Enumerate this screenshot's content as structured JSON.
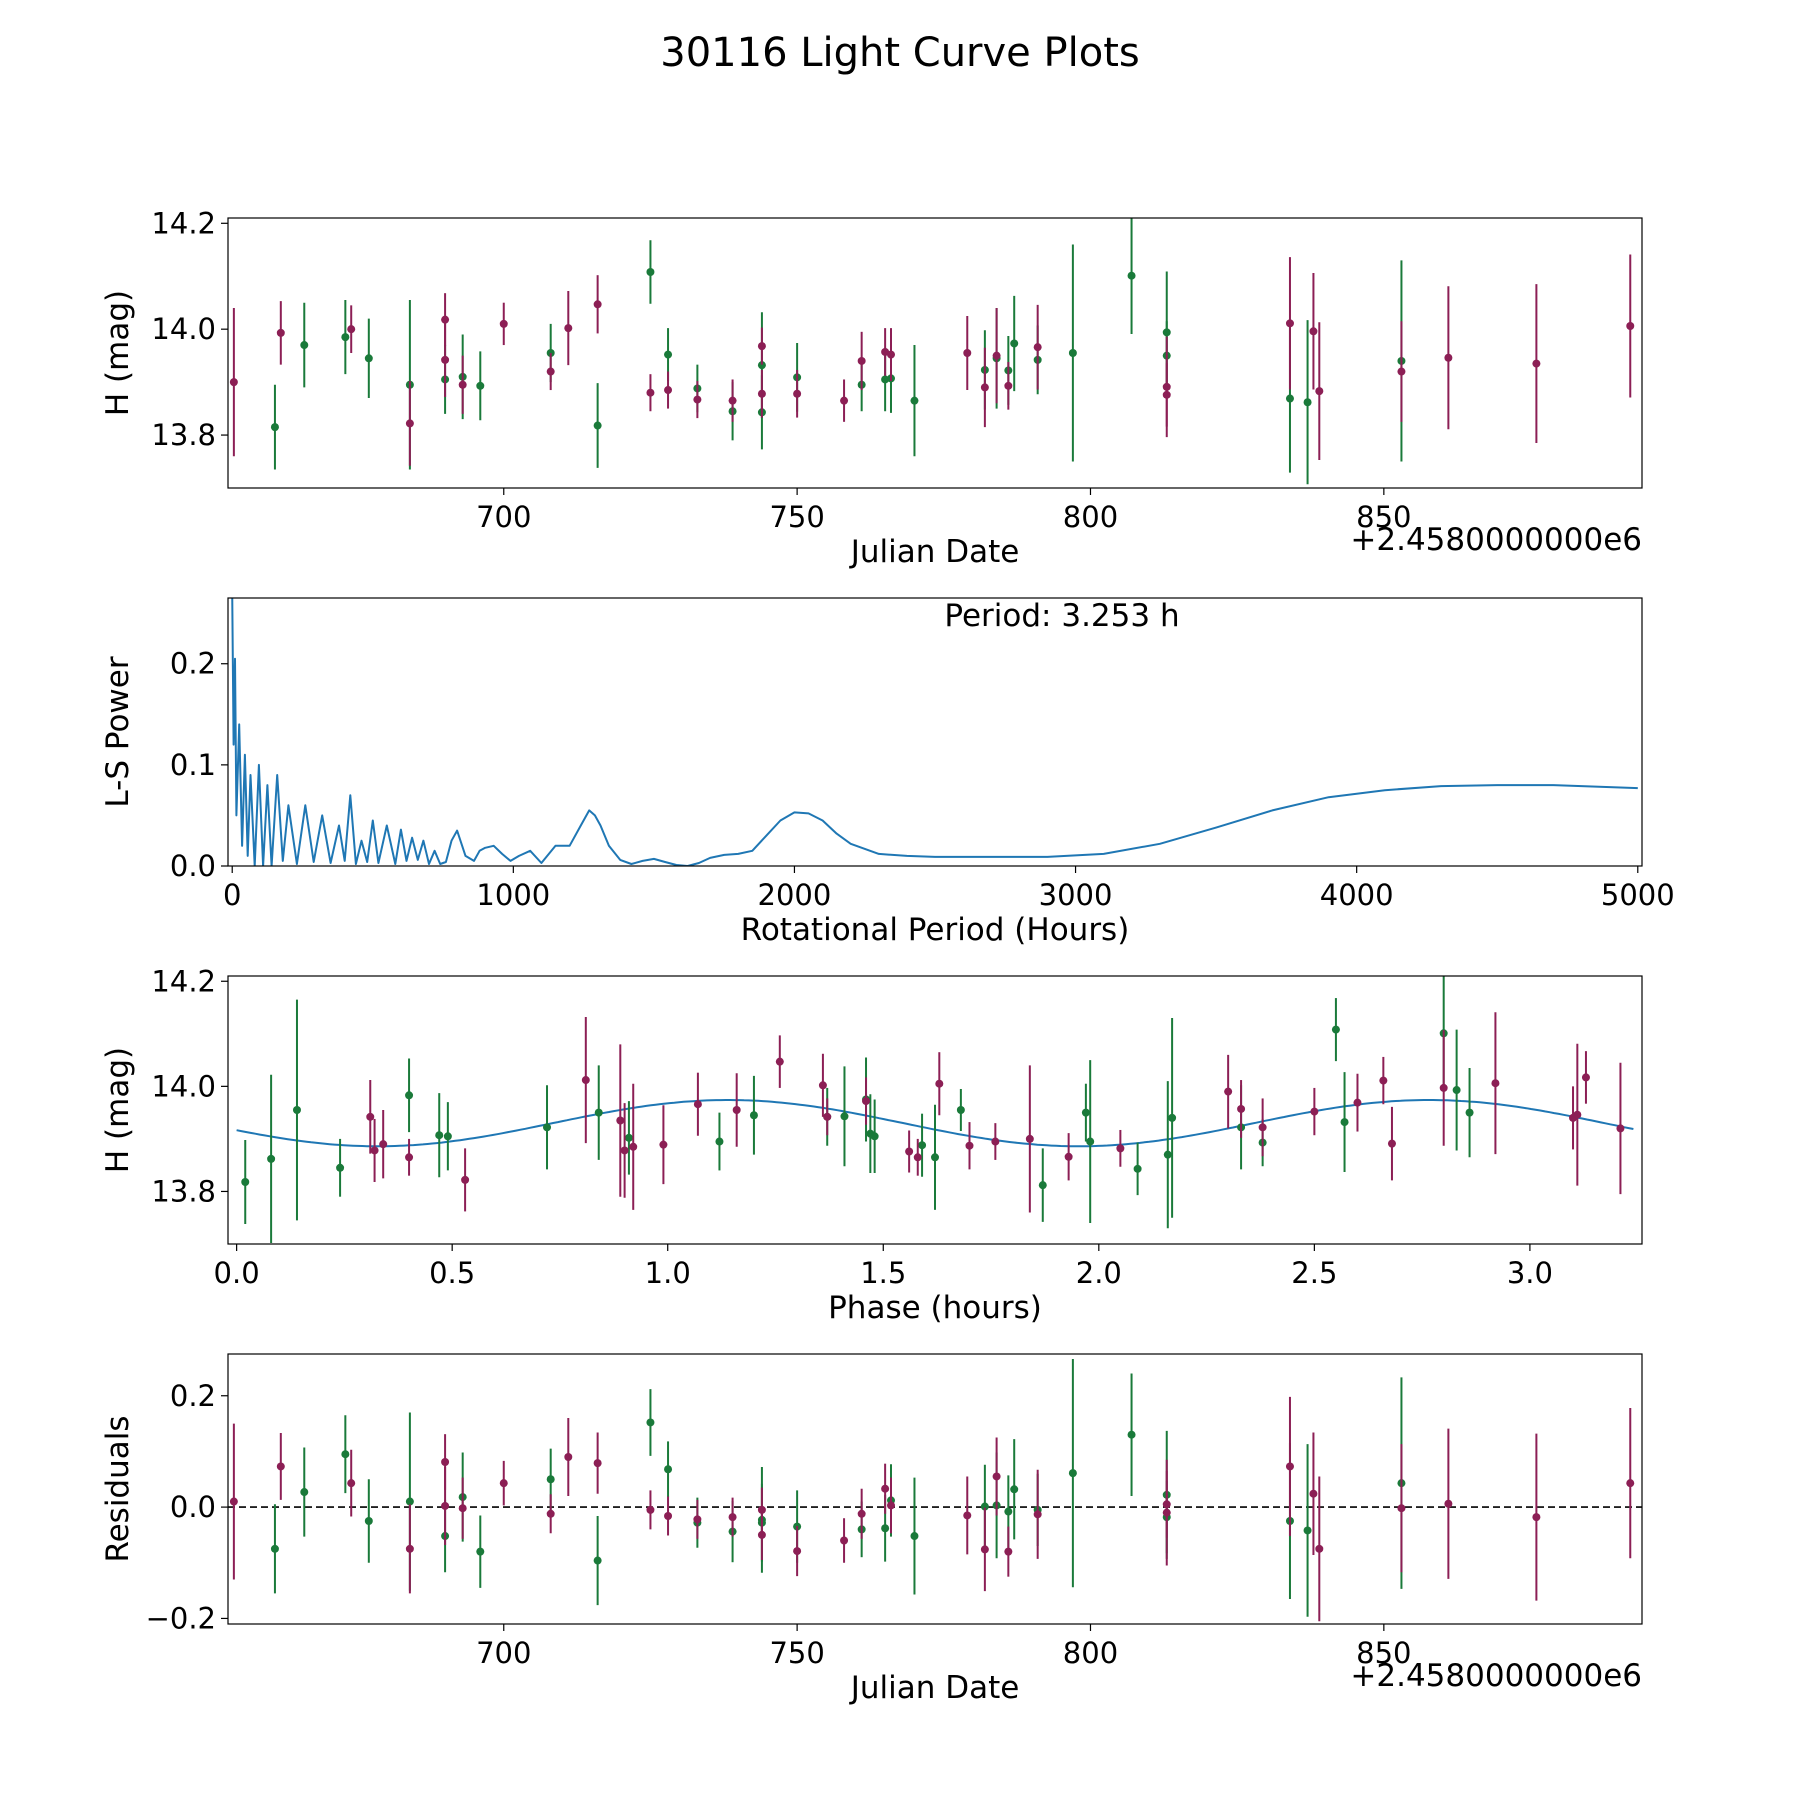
{
  "title": "30116 Light Curve Plots",
  "colors": {
    "g_band": "#1a7a3a",
    "r_band": "#8c1f55",
    "model": "#1f77b4",
    "frame": "#000000"
  },
  "chart_data": [
    {
      "id": "light-curve",
      "type": "scatter",
      "xlabel": "Julian Date",
      "ylabel": "H (mag)",
      "x_offset_label": "+2.4580000000e6",
      "xlim": [
        653,
        894
      ],
      "ylim": [
        13.7,
        14.21
      ],
      "xticks": [
        700,
        750,
        800,
        850
      ],
      "yticks": [
        13.8,
        14.0,
        14.2
      ],
      "ytick_labels": [
        "13.8",
        "14.0",
        "14.2"
      ],
      "series": [
        {
          "name": "g",
          "color": "#1a7a3a",
          "x": [
            661,
            666,
            673,
            677,
            684,
            690,
            693,
            696,
            708,
            716,
            725,
            728,
            733,
            739,
            744,
            744,
            750,
            761,
            765,
            766,
            770,
            782,
            784,
            786,
            787,
            791,
            797,
            807,
            813,
            813,
            834,
            837,
            853
          ],
          "y": [
            13.815,
            13.97,
            13.985,
            13.945,
            13.895,
            13.905,
            13.91,
            13.893,
            13.955,
            13.818,
            14.108,
            13.952,
            13.888,
            13.845,
            13.843,
            13.932,
            13.909,
            13.895,
            13.905,
            13.907,
            13.865,
            13.923,
            13.945,
            13.922,
            13.973,
            13.942,
            13.955,
            14.101,
            13.994,
            13.95,
            13.869,
            13.862,
            13.94
          ],
          "err": [
            0.08,
            0.08,
            0.07,
            0.075,
            0.16,
            0.065,
            0.08,
            0.065,
            0.055,
            0.08,
            0.06,
            0.05,
            0.045,
            0.055,
            0.07,
            0.1,
            0.065,
            0.05,
            0.06,
            0.065,
            0.105,
            0.075,
            0.095,
            0.065,
            0.09,
            0.065,
            0.205,
            0.11,
            0.115,
            0.065,
            0.14,
            0.155,
            0.19
          ]
        },
        {
          "name": "r",
          "color": "#8c1f55",
          "x": [
            654,
            662,
            674,
            684,
            690,
            690,
            693,
            700,
            708,
            711,
            716,
            725,
            728,
            733,
            739,
            744,
            744,
            750,
            758,
            761,
            765,
            766,
            779,
            782,
            784,
            786,
            791,
            813,
            813,
            834,
            838,
            839,
            853,
            861,
            876,
            892
          ],
          "y": [
            13.9,
            13.993,
            14.0,
            13.822,
            13.942,
            14.018,
            13.895,
            14.01,
            13.92,
            14.002,
            14.047,
            13.88,
            13.885,
            13.867,
            13.865,
            13.878,
            13.968,
            13.878,
            13.865,
            13.94,
            13.957,
            13.952,
            13.955,
            13.89,
            13.95,
            13.893,
            13.966,
            13.876,
            13.891,
            14.011,
            13.996,
            13.883,
            13.92,
            13.946,
            13.935,
            14.006
          ],
          "err": [
            0.14,
            0.06,
            0.045,
            0.08,
            0.07,
            0.05,
            0.055,
            0.04,
            0.035,
            0.07,
            0.055,
            0.035,
            0.035,
            0.035,
            0.04,
            0.045,
            0.035,
            0.045,
            0.04,
            0.055,
            0.045,
            0.05,
            0.07,
            0.075,
            0.09,
            0.045,
            0.08,
            0.06,
            0.095,
            0.125,
            0.11,
            0.13,
            0.095,
            0.135,
            0.15,
            0.135
          ]
        }
      ]
    },
    {
      "id": "periodogram",
      "type": "line",
      "xlabel": "Rotational Period (Hours)",
      "ylabel": "L-S Power",
      "annotation": "Period: 3.253 h",
      "xlim": [
        -15,
        5015
      ],
      "ylim": [
        0,
        0.265
      ],
      "xticks": [
        0,
        1000,
        2000,
        3000,
        4000,
        5000
      ],
      "yticks": [
        0.0,
        0.1,
        0.2
      ],
      "ytick_labels": [
        "0.0",
        "0.1",
        "0.2"
      ],
      "series": [
        {
          "name": "L-S power",
          "color": "#1f77b4",
          "x": [
            0,
            5,
            10,
            15,
            25,
            35,
            45,
            55,
            65,
            80,
            95,
            110,
            125,
            140,
            160,
            180,
            200,
            230,
            260,
            290,
            320,
            350,
            380,
            400,
            420,
            440,
            460,
            480,
            500,
            520,
            550,
            580,
            600,
            620,
            640,
            660,
            680,
            700,
            720,
            740,
            760,
            780,
            800,
            830,
            860,
            880,
            900,
            930,
            960,
            990,
            1020,
            1060,
            1100,
            1150,
            1200,
            1240,
            1270,
            1290,
            1310,
            1340,
            1380,
            1420,
            1460,
            1500,
            1540,
            1580,
            1620,
            1660,
            1700,
            1750,
            1800,
            1850,
            1900,
            1950,
            2000,
            2050,
            2100,
            2150,
            2200,
            2300,
            2400,
            2500,
            2700,
            2900,
            3100,
            3300,
            3500,
            3700,
            3900,
            4100,
            4300,
            4500,
            4700,
            4900,
            5000
          ],
          "y": [
            0.27,
            0.12,
            0.205,
            0.05,
            0.14,
            0.02,
            0.11,
            0.01,
            0.09,
            0.0,
            0.1,
            0.0,
            0.08,
            0.0,
            0.09,
            0.005,
            0.06,
            0.002,
            0.06,
            0.004,
            0.05,
            0.003,
            0.04,
            0.005,
            0.07,
            0.002,
            0.025,
            0.004,
            0.045,
            0.003,
            0.04,
            0.002,
            0.036,
            0.005,
            0.028,
            0.006,
            0.025,
            0.002,
            0.015,
            0.002,
            0.004,
            0.025,
            0.035,
            0.01,
            0.005,
            0.015,
            0.018,
            0.02,
            0.012,
            0.005,
            0.01,
            0.015,
            0.003,
            0.02,
            0.02,
            0.04,
            0.055,
            0.05,
            0.04,
            0.02,
            0.006,
            0.002,
            0.005,
            0.007,
            0.004,
            0.001,
            0.0,
            0.003,
            0.008,
            0.011,
            0.012,
            0.015,
            0.03,
            0.045,
            0.053,
            0.052,
            0.045,
            0.032,
            0.022,
            0.012,
            0.01,
            0.009,
            0.009,
            0.009,
            0.012,
            0.022,
            0.038,
            0.055,
            0.068,
            0.075,
            0.079,
            0.08,
            0.08,
            0.078,
            0.077
          ]
        }
      ]
    },
    {
      "id": "phase-plot",
      "type": "scatter",
      "xlabel": "Phase (hours)",
      "ylabel": "H (mag)",
      "xlim": [
        -0.02,
        3.26
      ],
      "ylim": [
        13.7,
        14.21
      ],
      "xticks": [
        0.0,
        0.5,
        1.0,
        1.5,
        2.0,
        2.5,
        3.0
      ],
      "xtick_labels": [
        "0.0",
        "0.5",
        "1.0",
        "1.5",
        "2.0",
        "2.5",
        "3.0"
      ],
      "yticks": [
        13.8,
        14.0,
        14.2
      ],
      "ytick_labels": [
        "13.8",
        "14.0",
        "14.2"
      ],
      "model": {
        "name": "sinusoid fit",
        "color": "#1f77b4",
        "mean": 13.93,
        "amplitude": 0.044,
        "period": 1.6265,
        "peak_phase": 1.14
      },
      "series": [
        {
          "name": "g",
          "color": "#1a7a3a",
          "x": [
            0.02,
            0.08,
            0.14,
            0.24,
            0.4,
            0.47,
            0.49,
            0.72,
            0.84,
            0.91,
            1.12,
            1.2,
            1.37,
            1.41,
            1.46,
            1.47,
            1.48,
            1.59,
            1.62,
            1.68,
            1.87,
            1.97,
            1.98,
            2.09,
            2.16,
            2.17,
            2.33,
            2.38,
            2.55,
            2.57,
            2.8,
            2.83,
            2.86
          ],
          "y": [
            13.818,
            13.862,
            13.955,
            13.845,
            13.983,
            13.907,
            13.905,
            13.922,
            13.95,
            13.902,
            13.895,
            13.945,
            13.942,
            13.943,
            13.975,
            13.91,
            13.905,
            13.888,
            13.865,
            13.955,
            13.812,
            13.95,
            13.895,
            13.843,
            13.87,
            13.94,
            13.922,
            13.893,
            14.108,
            13.932,
            14.101,
            13.993,
            13.95
          ],
          "err": [
            0.08,
            0.16,
            0.21,
            0.055,
            0.07,
            0.08,
            0.065,
            0.08,
            0.09,
            0.07,
            0.055,
            0.075,
            0.055,
            0.095,
            0.08,
            0.075,
            0.07,
            0.06,
            0.1,
            0.04,
            0.07,
            0.055,
            0.155,
            0.05,
            0.14,
            0.19,
            0.08,
            0.045,
            0.06,
            0.095,
            0.11,
            0.115,
            0.085
          ]
        },
        {
          "name": "r",
          "color": "#8c1f55",
          "x": [
            0.31,
            0.32,
            0.34,
            0.4,
            0.53,
            0.81,
            0.89,
            0.9,
            0.92,
            0.99,
            1.07,
            1.16,
            1.26,
            1.36,
            1.37,
            1.46,
            1.56,
            1.58,
            1.63,
            1.7,
            1.76,
            1.84,
            1.93,
            2.05,
            2.3,
            2.33,
            2.38,
            2.5,
            2.6,
            2.66,
            2.68,
            2.8,
            2.92,
            3.1,
            3.11,
            3.13,
            3.21
          ],
          "y": [
            13.942,
            13.878,
            13.89,
            13.865,
            13.822,
            14.012,
            13.935,
            13.878,
            13.885,
            13.889,
            13.966,
            13.955,
            14.047,
            14.002,
            13.942,
            13.972,
            13.876,
            13.865,
            14.005,
            13.887,
            13.895,
            13.9,
            13.866,
            13.882,
            13.99,
            13.957,
            13.922,
            13.952,
            13.969,
            14.011,
            13.891,
            13.997,
            14.006,
            13.94,
            13.946,
            14.017,
            13.92
          ],
          "err": [
            0.07,
            0.06,
            0.065,
            0.035,
            0.06,
            0.12,
            0.145,
            0.09,
            0.12,
            0.075,
            0.06,
            0.07,
            0.05,
            0.06,
            0.035,
            0.045,
            0.04,
            0.035,
            0.06,
            0.045,
            0.035,
            0.14,
            0.045,
            0.035,
            0.07,
            0.055,
            0.055,
            0.045,
            0.055,
            0.045,
            0.07,
            0.11,
            0.135,
            0.06,
            0.135,
            0.05,
            0.125
          ]
        }
      ]
    },
    {
      "id": "residuals",
      "type": "scatter",
      "xlabel": "Julian Date",
      "ylabel": "Residuals",
      "x_offset_label": "+2.4580000000e6",
      "xlim": [
        653,
        894
      ],
      "ylim": [
        -0.21,
        0.275
      ],
      "xticks": [
        700,
        750,
        800,
        850
      ],
      "yticks": [
        -0.2,
        0.0,
        0.2
      ],
      "ytick_labels": [
        "−0.2",
        "0.0",
        "0.2"
      ],
      "reference_line": {
        "y": 0,
        "style": "dashed",
        "color": "#000000"
      },
      "series": [
        {
          "name": "g",
          "color": "#1a7a3a",
          "x": [
            661,
            666,
            673,
            677,
            684,
            690,
            693,
            696,
            708,
            716,
            725,
            728,
            733,
            739,
            744,
            744,
            750,
            761,
            765,
            766,
            770,
            782,
            784,
            786,
            787,
            791,
            797,
            807,
            813,
            813,
            834,
            837,
            853
          ],
          "y": [
            -0.075,
            0.027,
            0.095,
            -0.025,
            0.01,
            -0.052,
            0.018,
            -0.08,
            0.05,
            -0.096,
            0.152,
            0.068,
            -0.028,
            -0.044,
            -0.023,
            -0.028,
            -0.035,
            -0.04,
            -0.038,
            0.012,
            -0.052,
            0.001,
            0.003,
            -0.008,
            0.032,
            -0.005,
            0.061,
            0.13,
            0.022,
            -0.018,
            -0.025,
            -0.042,
            0.043
          ],
          "err": [
            0.08,
            0.08,
            0.07,
            0.075,
            0.16,
            0.065,
            0.08,
            0.065,
            0.055,
            0.08,
            0.06,
            0.05,
            0.045,
            0.055,
            0.095,
            0.07,
            0.065,
            0.05,
            0.06,
            0.065,
            0.105,
            0.075,
            0.095,
            0.065,
            0.09,
            0.065,
            0.205,
            0.11,
            0.115,
            0.065,
            0.14,
            0.155,
            0.19
          ]
        },
        {
          "name": "r",
          "color": "#8c1f55",
          "x": [
            654,
            662,
            674,
            684,
            690,
            690,
            693,
            700,
            708,
            711,
            716,
            725,
            728,
            733,
            739,
            744,
            744,
            750,
            758,
            761,
            765,
            766,
            779,
            782,
            784,
            786,
            791,
            813,
            813,
            834,
            838,
            839,
            853,
            861,
            876,
            892
          ],
          "y": [
            0.01,
            0.073,
            0.043,
            -0.075,
            0.002,
            0.081,
            -0.002,
            0.043,
            -0.012,
            0.09,
            0.079,
            -0.005,
            -0.016,
            -0.022,
            -0.018,
            -0.05,
            -0.005,
            -0.079,
            -0.06,
            -0.012,
            0.033,
            0.003,
            -0.015,
            -0.076,
            0.055,
            -0.08,
            -0.013,
            0.005,
            -0.01,
            0.073,
            0.024,
            -0.075,
            -0.002,
            0.006,
            -0.018,
            0.043
          ],
          "err": [
            0.14,
            0.06,
            0.06,
            0.08,
            0.07,
            0.05,
            0.055,
            0.04,
            0.035,
            0.07,
            0.055,
            0.035,
            0.035,
            0.035,
            0.035,
            0.045,
            0.04,
            0.045,
            0.04,
            0.045,
            0.045,
            0.05,
            0.07,
            0.075,
            0.07,
            0.045,
            0.08,
            0.06,
            0.095,
            0.125,
            0.11,
            0.13,
            0.115,
            0.135,
            0.15,
            0.135
          ]
        }
      ]
    }
  ]
}
